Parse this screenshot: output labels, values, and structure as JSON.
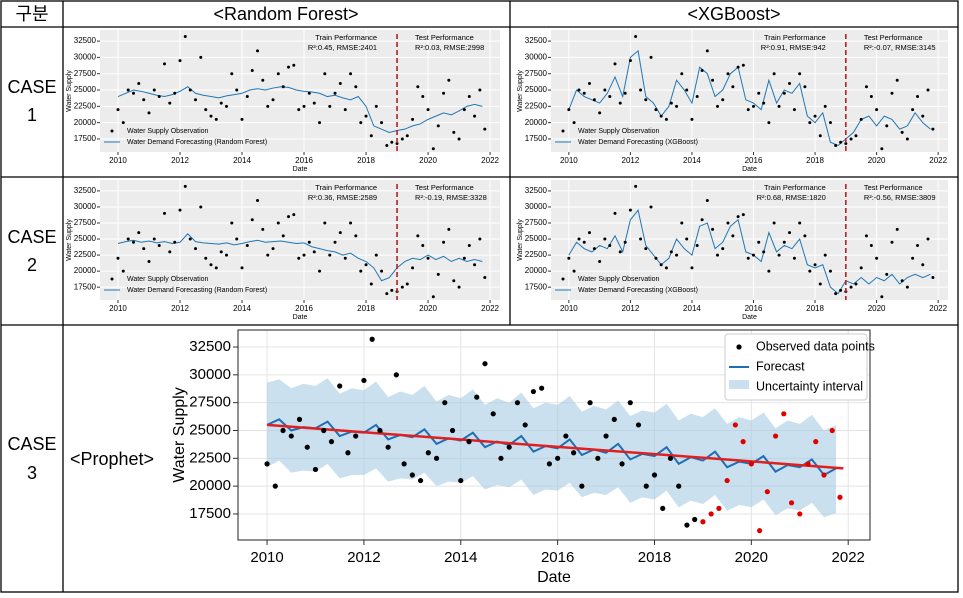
{
  "table": {
    "header": [
      "구분",
      "<Random Forest>",
      "<XGBoost>"
    ],
    "rows": [
      [
        "CASE",
        "1"
      ],
      [
        "CASE",
        "2"
      ],
      [
        "CASE",
        "3"
      ]
    ],
    "prophet_label": "<Prophet>"
  },
  "observation": {
    "x": [
      2010,
      2010.17,
      2010.33,
      2010.5,
      2010.67,
      2010.83,
      2011,
      2011.17,
      2011.33,
      2011.5,
      2011.67,
      2011.83,
      2012,
      2012.17,
      2012.33,
      2012.5,
      2012.67,
      2012.83,
      2013,
      2013.17,
      2013.33,
      2013.5,
      2013.67,
      2013.83,
      2014,
      2014.17,
      2014.33,
      2014.5,
      2014.67,
      2014.83,
      2015,
      2015.17,
      2015.33,
      2015.5,
      2015.67,
      2015.83,
      2016,
      2016.17,
      2016.33,
      2016.5,
      2016.67,
      2016.83,
      2017,
      2017.17,
      2017.33,
      2017.5,
      2017.67,
      2017.83,
      2018,
      2018.17,
      2018.33,
      2018.5,
      2018.67,
      2018.83,
      2019,
      2019.17,
      2019.33,
      2019.5,
      2019.67,
      2019.83,
      2020,
      2020.17,
      2020.33,
      2020.5,
      2020.67,
      2020.83,
      2021,
      2021.17,
      2021.33,
      2021.5,
      2021.67,
      2021.83
    ],
    "values": [
      22000,
      20000,
      25000,
      24500,
      26000,
      23500,
      21500,
      25000,
      24000,
      29000,
      23000,
      24500,
      29500,
      33200,
      25000,
      23500,
      30000,
      22000,
      21000,
      20500,
      23000,
      22500,
      27500,
      25000,
      20500,
      24000,
      28000,
      31000,
      26500,
      22500,
      23500,
      27500,
      25500,
      28500,
      28800,
      22000,
      22500,
      24500,
      23000,
      20000,
      27500,
      22500,
      24500,
      26000,
      22000,
      27500,
      25500,
      20000,
      21000,
      18000,
      22500,
      20000,
      16500,
      17000,
      16800,
      17500,
      18000,
      20500,
      25500,
      24000,
      22000,
      16000,
      19500,
      24500,
      26500,
      18500,
      17500,
      22000,
      24000,
      21000,
      25000,
      19000
    ]
  },
  "forecast_x": [
    2010,
    2010.25,
    2010.5,
    2010.75,
    2011,
    2011.25,
    2011.5,
    2011.75,
    2012,
    2012.25,
    2012.5,
    2012.75,
    2013,
    2013.25,
    2013.5,
    2013.75,
    2014,
    2014.25,
    2014.5,
    2014.75,
    2015,
    2015.25,
    2015.5,
    2015.75,
    2016,
    2016.25,
    2016.5,
    2016.75,
    2017,
    2017.25,
    2017.5,
    2017.75,
    2018,
    2018.25,
    2018.5,
    2018.75,
    2019,
    2019.25,
    2019.5,
    2019.75,
    2020,
    2020.25,
    2020.5,
    2020.75,
    2021,
    2021.25,
    2021.5,
    2021.75
  ],
  "chart_data": [
    {
      "type": "line",
      "xlabel": "Date",
      "ylabel": "Water Supply",
      "xlim": [
        2009.42,
        2022.32
      ],
      "ylim": [
        15500,
        34200
      ],
      "xticks": [
        2010,
        2012,
        2014,
        2016,
        2018,
        2020,
        2022
      ],
      "yticks": [
        17500,
        20000,
        22500,
        25000,
        27500,
        30000,
        32500
      ],
      "grid": true,
      "test_start": 2019,
      "test_line_color": "#b22222",
      "train_label": "Train Performance",
      "train_metrics": "R²:0.45, RMSE:2401",
      "test_label": "Test Performance",
      "test_metrics": "R²:0.03, RMSE:2998",
      "series": [
        {
          "name": "Water Supply Observation",
          "color": "#000000"
        },
        {
          "name": "Water Demand Forecasting (Random Forest)",
          "color": "#1f77b4",
          "values": [
            24000,
            24500,
            25000,
            24800,
            24500,
            24200,
            24000,
            24300,
            24800,
            25500,
            24500,
            24200,
            24000,
            23800,
            24100,
            24300,
            24500,
            25000,
            25200,
            25000,
            25300,
            25500,
            25400,
            25000,
            24800,
            24700,
            24500,
            24000,
            24200,
            23800,
            23500,
            24000,
            22500,
            19500,
            19000,
            18500,
            18800,
            19000,
            19500,
            19800,
            20500,
            21000,
            21500,
            21200,
            21800,
            22500,
            22800,
            22500
          ]
        }
      ]
    },
    {
      "type": "line",
      "xlabel": "Date",
      "ylabel": "Water Supply",
      "xlim": [
        2009.42,
        2022.32
      ],
      "ylim": [
        15500,
        34200
      ],
      "xticks": [
        2010,
        2012,
        2014,
        2016,
        2018,
        2020,
        2022
      ],
      "yticks": [
        17500,
        20000,
        22500,
        25000,
        27500,
        30000,
        32500
      ],
      "grid": true,
      "test_start": 2019,
      "test_line_color": "#b22222",
      "train_label": "Train Performance",
      "train_metrics": "R²:0.91, RMSE:942",
      "test_label": "Test Performance",
      "test_metrics": "R²:-0.07, RMSE:3145",
      "series": [
        {
          "name": "Water Supply Observation",
          "color": "#000000"
        },
        {
          "name": "Water Demand Forecasting (XGBoost)",
          "color": "#1f77b4",
          "values": [
            22000,
            25000,
            24000,
            23500,
            23000,
            24500,
            27000,
            24000,
            30000,
            31000,
            24000,
            23000,
            21000,
            22500,
            26500,
            25000,
            23000,
            28500,
            27500,
            24000,
            25000,
            27500,
            28500,
            23500,
            23000,
            22000,
            26500,
            23000,
            25000,
            24500,
            26000,
            21000,
            20000,
            21500,
            17000,
            16500,
            17500,
            18500,
            20500,
            21000,
            19500,
            21000,
            20500,
            19000,
            19500,
            21500,
            20000,
            19000
          ]
        }
      ]
    },
    {
      "type": "line",
      "xlabel": "Date",
      "ylabel": "Water Supply",
      "xlim": [
        2009.42,
        2022.32
      ],
      "ylim": [
        15500,
        34200
      ],
      "xticks": [
        2010,
        2012,
        2014,
        2016,
        2018,
        2020,
        2022
      ],
      "yticks": [
        17500,
        20000,
        22500,
        25000,
        27500,
        30000,
        32500
      ],
      "grid": true,
      "test_start": 2019,
      "test_line_color": "#b22222",
      "train_label": "Train Performance",
      "train_metrics": "R²:0.36, RMSE:2589",
      "test_label": "Test Performance",
      "test_metrics": "R²:-0.19, RMSE:3328",
      "series": [
        {
          "name": "Water Supply Observation",
          "color": "#000000"
        },
        {
          "name": "Water Demand Forecasting (Random Forest)",
          "color": "#1f77b4",
          "values": [
            24300,
            24600,
            24800,
            24500,
            24700,
            24400,
            24600,
            24300,
            24500,
            25800,
            24600,
            24400,
            24300,
            24200,
            24400,
            24100,
            24300,
            24600,
            24800,
            24500,
            24600,
            24700,
            24500,
            24300,
            24400,
            23800,
            23500,
            23200,
            23000,
            22500,
            22800,
            22000,
            21500,
            20500,
            18500,
            19000,
            20500,
            21500,
            22000,
            21800,
            22500,
            21800,
            22300,
            21500,
            22000,
            21500,
            21800,
            21500
          ]
        }
      ]
    },
    {
      "type": "line",
      "xlabel": "Date",
      "ylabel": "Water Supply",
      "xlim": [
        2009.42,
        2022.32
      ],
      "ylim": [
        15500,
        34200
      ],
      "xticks": [
        2010,
        2012,
        2014,
        2016,
        2018,
        2020,
        2022
      ],
      "yticks": [
        17500,
        20000,
        22500,
        25000,
        27500,
        30000,
        32500
      ],
      "grid": true,
      "test_start": 2019,
      "test_line_color": "#b22222",
      "train_label": "Train Performance",
      "train_metrics": "R²:0.68, RMSE:1820",
      "test_label": "Test Performance",
      "test_metrics": "R²:-0.56, RMSE:3809",
      "series": [
        {
          "name": "Water Supply Observation",
          "color": "#000000"
        },
        {
          "name": "Water Demand Forecasting (XGBoost)",
          "color": "#1f77b4",
          "values": [
            22500,
            24500,
            23500,
            23000,
            24000,
            23500,
            25500,
            23000,
            28000,
            29500,
            24000,
            22500,
            21000,
            22000,
            25000,
            23500,
            22500,
            27000,
            27500,
            23500,
            24500,
            27000,
            28000,
            23000,
            22500,
            21500,
            26000,
            23000,
            24000,
            23500,
            25000,
            21000,
            20500,
            21000,
            17500,
            16500,
            18500,
            18000,
            19000,
            18000,
            19000,
            18500,
            19500,
            18000,
            19000,
            19500,
            19000,
            19500
          ]
        }
      ]
    },
    {
      "type": "prophet",
      "xlabel": "Date",
      "ylabel": "Water Supply",
      "xlim": [
        2009.4,
        2022.45
      ],
      "ylim": [
        15160,
        34030
      ],
      "xticks": [
        2010,
        2012,
        2014,
        2016,
        2018,
        2020,
        2022
      ],
      "yticks": [
        17500,
        20000,
        22500,
        25000,
        27500,
        30000,
        32500
      ],
      "grid": true,
      "test_start": 2019,
      "test_color": "#e00000",
      "legend": "upper right",
      "series": [
        {
          "name": "Observed data points",
          "color": "#000000"
        },
        {
          "name": "Forecast",
          "color": "#1f6fb4",
          "values": [
            25500,
            26000,
            25000,
            25300,
            25200,
            25800,
            24500,
            24900,
            24800,
            25500,
            24200,
            24600,
            24400,
            25100,
            23800,
            24300,
            24100,
            24800,
            23500,
            24000,
            23700,
            24500,
            23100,
            23600,
            23400,
            24200,
            22800,
            23300,
            23000,
            23800,
            22400,
            22900,
            22700,
            23500,
            22000,
            22600,
            22300,
            23100,
            21700,
            22200,
            22000,
            22700,
            21300,
            21900,
            21700,
            22400,
            21000,
            21600
          ]
        },
        {
          "name": "Uncertainty interval",
          "color": "#a6cbe3",
          "upper": [
            29300,
            29600,
            28800,
            29200,
            29000,
            29700,
            28300,
            28800,
            28600,
            29400,
            28000,
            28500,
            28200,
            29000,
            27600,
            28200,
            27900,
            28700,
            27300,
            27900,
            27500,
            28400,
            27000,
            27500,
            27300,
            28100,
            26700,
            27200,
            26900,
            27700,
            26300,
            26800,
            26600,
            27400,
            25900,
            26500,
            26200,
            27000,
            25600,
            26200,
            25900,
            26600,
            25200,
            25900,
            25600,
            26400,
            25000,
            25500
          ],
          "lower": [
            21700,
            22300,
            21200,
            21400,
            21300,
            22000,
            20700,
            21000,
            21000,
            21600,
            20400,
            20700,
            20600,
            21200,
            20000,
            20400,
            20300,
            20900,
            19700,
            20100,
            19900,
            20600,
            19200,
            19700,
            19600,
            20300,
            19000,
            19400,
            19200,
            19900,
            18500,
            19000,
            18800,
            19600,
            18100,
            18700,
            18400,
            19200,
            17800,
            18300,
            18100,
            18800,
            17400,
            18000,
            17800,
            18500,
            17200,
            17600
          ]
        }
      ],
      "trend": {
        "x": [
          2010,
          2021.9
        ],
        "values": [
          25500,
          21600
        ],
        "color": "#e02020"
      }
    }
  ]
}
